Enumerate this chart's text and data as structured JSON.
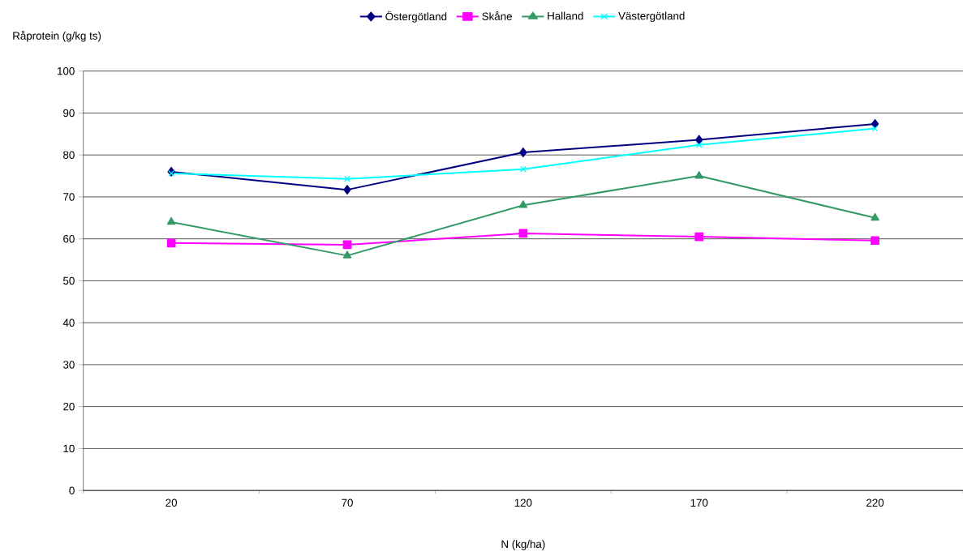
{
  "chart_data": {
    "type": "line",
    "xlabel": "N (kg/ha)",
    "ylabel": "Råprotein (g/kg ts)",
    "categories": [
      "20",
      "70",
      "120",
      "170",
      "220"
    ],
    "series": [
      {
        "name": "Östergötland",
        "color": "#000080",
        "marker": "diamond",
        "values": [
          76.0,
          71.7,
          80.6,
          83.6,
          87.4
        ]
      },
      {
        "name": "Skåne",
        "color": "#ff00ff",
        "marker": "square",
        "values": [
          59.0,
          58.6,
          61.3,
          60.5,
          59.6
        ]
      },
      {
        "name": "Halland",
        "color": "#339966",
        "marker": "triangle",
        "values": [
          64.0,
          56.0,
          68.0,
          75.0,
          65.0
        ]
      },
      {
        "name": "Västergötland",
        "color": "#00ffff",
        "marker": "cross",
        "values": [
          75.6,
          74.3,
          76.6,
          82.4,
          86.3
        ]
      }
    ],
    "ylim": [
      0,
      100
    ],
    "yticks": [
      0,
      10,
      20,
      30,
      40,
      50,
      60,
      70,
      80,
      90,
      100
    ],
    "grid": "y",
    "legend": "top",
    "line_style": "solid"
  }
}
